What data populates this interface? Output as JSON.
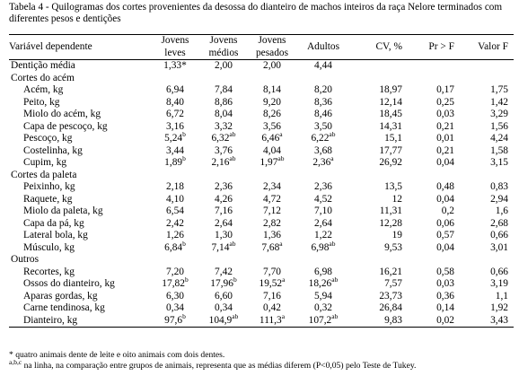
{
  "caption": "Tabela 4 - Quilogramas dos cortes provenientes da desossa do dianteiro de machos inteiros da raça Nelore terminados com diferentes pesos e dentições",
  "headers": {
    "variavel": "Variável dependente",
    "jovens_leves": [
      "Jovens",
      "leves"
    ],
    "jovens_medios": [
      "Jovens",
      "médios"
    ],
    "jovens_pesados": [
      "Jovens",
      "pesados"
    ],
    "adultos": "Adultos",
    "cv": "CV, %",
    "pr": "Pr > F",
    "valor_f": "Valor F"
  },
  "rows": [
    {
      "type": "data",
      "label": "Dentição média",
      "values": [
        "1,33*",
        "2,00",
        "2,00",
        "4,44",
        "",
        "",
        ""
      ],
      "sups": [
        "",
        "",
        "",
        "",
        "",
        "",
        ""
      ]
    },
    {
      "type": "section",
      "label": "Cortes do acém"
    },
    {
      "type": "data",
      "label": "Acém, kg",
      "values": [
        "6,94",
        "7,84",
        "8,14",
        "8,20",
        "18,97",
        "0,17",
        "1,75"
      ],
      "sups": [
        "",
        "",
        "",
        "",
        "",
        "",
        ""
      ]
    },
    {
      "type": "data",
      "label": "Peito, kg",
      "values": [
        "8,40",
        "8,86",
        "9,20",
        "8,36",
        "12,14",
        "0,25",
        "1,42"
      ],
      "sups": [
        "",
        "",
        "",
        "",
        "",
        "",
        ""
      ]
    },
    {
      "type": "data",
      "label": "Miolo do acém, kg",
      "values": [
        "6,72",
        "8,04",
        "8,26",
        "8,46",
        "18,45",
        "0,03",
        "3,29"
      ],
      "sups": [
        "",
        "",
        "",
        "",
        "",
        "",
        ""
      ]
    },
    {
      "type": "data",
      "label": "Capa de pescoço, kg",
      "values": [
        "3,16",
        "3,32",
        "3,56",
        "3,50",
        "14,31",
        "0,21",
        "1,56"
      ],
      "sups": [
        "",
        "",
        "",
        "",
        "",
        "",
        ""
      ]
    },
    {
      "type": "data",
      "label": "Pescoço, kg",
      "values": [
        "5,24",
        "6,32",
        "6,46",
        "6,22",
        "15,1",
        "0,01",
        "4,24"
      ],
      "sups": [
        "b",
        "ab",
        "a",
        "ab",
        "",
        "",
        ""
      ]
    },
    {
      "type": "data",
      "label": "Costelinha, kg",
      "values": [
        "3,44",
        "3,76",
        "4,04",
        "3,68",
        "17,77",
        "0,21",
        "1,58"
      ],
      "sups": [
        "",
        "",
        "",
        "",
        "",
        "",
        ""
      ]
    },
    {
      "type": "data",
      "label": "Cupim, kg",
      "values": [
        "1,89",
        "2,16",
        "1,97",
        "2,36",
        "26,92",
        "0,04",
        "3,15"
      ],
      "sups": [
        "b",
        "ab",
        "ab",
        "a",
        "",
        "",
        ""
      ]
    },
    {
      "type": "section",
      "label": "Cortes da paleta"
    },
    {
      "type": "data",
      "label": "Peixinho, kg",
      "values": [
        "2,18",
        "2,36",
        "2,34",
        "2,36",
        "13,5",
        "0,48",
        "0,83"
      ],
      "sups": [
        "",
        "",
        "",
        "",
        "",
        "",
        ""
      ]
    },
    {
      "type": "data",
      "label": "Raquete, kg",
      "values": [
        "4,10",
        "4,26",
        "4,72",
        "4,52",
        "12",
        "0,04",
        "2,94"
      ],
      "sups": [
        "",
        "",
        "",
        "",
        "",
        "",
        ""
      ]
    },
    {
      "type": "data",
      "label": "Miolo da paleta, kg",
      "values": [
        "6,54",
        "7,16",
        "7,12",
        "7,10",
        "11,31",
        "0,2",
        "1,6"
      ],
      "sups": [
        "",
        "",
        "",
        "",
        "",
        "",
        ""
      ]
    },
    {
      "type": "data",
      "label": "Capa da pá, kg",
      "values": [
        "2,42",
        "2,64",
        "2,82",
        "2,64",
        "12,28",
        "0,06",
        "2,68"
      ],
      "sups": [
        "",
        "",
        "",
        "",
        "",
        "",
        ""
      ]
    },
    {
      "type": "data",
      "label": "Lateral bola, kg",
      "values": [
        "1,26",
        "1,30",
        "1,36",
        "1,22",
        "19",
        "0,57",
        "0,66"
      ],
      "sups": [
        "",
        "",
        "",
        "",
        "",
        "",
        ""
      ]
    },
    {
      "type": "data",
      "label": "Músculo, kg",
      "values": [
        "6,84",
        "7,14",
        "7,68",
        "6,98",
        "9,53",
        "0,04",
        "3,01"
      ],
      "sups": [
        "b",
        "ab",
        "a",
        "ab",
        "",
        "",
        ""
      ]
    },
    {
      "type": "section",
      "label": "Outros"
    },
    {
      "type": "data",
      "label": "Recortes, kg",
      "values": [
        "7,20",
        "7,42",
        "7,70",
        "6,98",
        "16,21",
        "0,58",
        "0,66"
      ],
      "sups": [
        "",
        "",
        "",
        "",
        "",
        "",
        ""
      ]
    },
    {
      "type": "data",
      "label": "Ossos do dianteiro, kg",
      "values": [
        "17,82",
        "17,96",
        "19,52",
        "18,26",
        "7,57",
        "0,03",
        "3,19"
      ],
      "sups": [
        "b",
        "b",
        "a",
        "ab",
        "",
        "",
        ""
      ]
    },
    {
      "type": "data",
      "label": "Aparas gordas, kg",
      "values": [
        "6,30",
        "6,60",
        "7,16",
        "5,94",
        "23,73",
        "0,36",
        "1,1"
      ],
      "sups": [
        "",
        "",
        "",
        "",
        "",
        "",
        ""
      ]
    },
    {
      "type": "data",
      "label": "Carne tendinosa, kg",
      "values": [
        "0,34",
        "0,34",
        "0,42",
        "0,32",
        "26,84",
        "0,14",
        "1,92"
      ],
      "sups": [
        "",
        "",
        "",
        "",
        "",
        "",
        ""
      ]
    },
    {
      "type": "data",
      "label": "Dianteiro, kg",
      "values": [
        "97,6",
        "104,9",
        "111,3",
        "107,2",
        "9,83",
        "0,02",
        "3,43"
      ],
      "sups": [
        "b",
        "ab",
        "a",
        "ab",
        "",
        "",
        ""
      ]
    }
  ],
  "notes": {
    "note1": "* quatro animais dente de leite e oito animais com dois dentes.",
    "note2_sup": "a,b,c",
    "note2": " na linha, na comparação entre grupos de animais, representa que as médias diferem (P<0,05) pelo Teste de Tukey."
  }
}
